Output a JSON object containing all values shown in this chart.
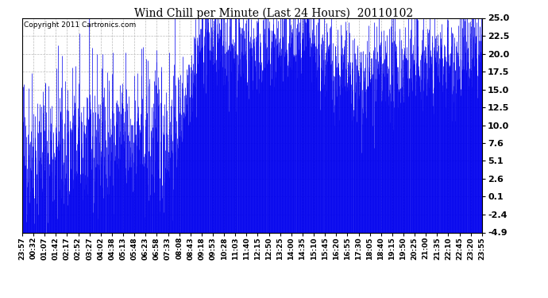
{
  "title": "Wind Chill per Minute (Last 24 Hours)  20110102",
  "copyright_text": "Copyright 2011 Cartronics.com",
  "yticks": [
    25.0,
    22.5,
    20.0,
    17.5,
    15.0,
    12.5,
    10.0,
    7.6,
    5.1,
    2.6,
    0.1,
    -2.4,
    -4.9
  ],
  "ymin": -4.9,
  "ymax": 25.0,
  "bar_color": "#0000ee",
  "background_color": "#ffffff",
  "grid_color": "#bbbbbb",
  "xtick_labels": [
    "23:57",
    "00:32",
    "01:07",
    "01:42",
    "02:17",
    "02:52",
    "03:27",
    "04:02",
    "04:38",
    "05:13",
    "05:48",
    "06:23",
    "06:58",
    "07:33",
    "08:08",
    "08:43",
    "09:18",
    "09:53",
    "10:28",
    "11:03",
    "11:40",
    "12:15",
    "12:50",
    "13:25",
    "14:00",
    "14:35",
    "15:10",
    "15:45",
    "16:20",
    "16:55",
    "17:30",
    "18:05",
    "18:40",
    "19:15",
    "19:50",
    "20:25",
    "21:00",
    "21:35",
    "22:10",
    "22:45",
    "23:20",
    "23:55"
  ],
  "n_points": 1440,
  "seed": 42
}
